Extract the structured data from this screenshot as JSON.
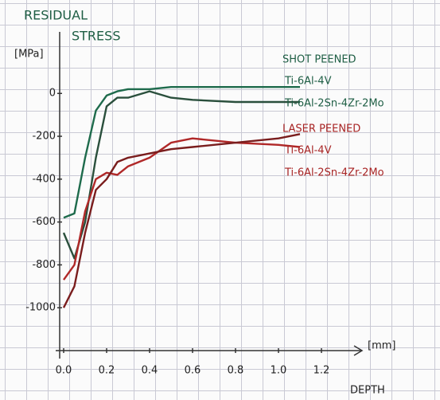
{
  "chart_data": {
    "type": "line",
    "title": [
      "RESIDUAL",
      "STRESS"
    ],
    "y_label": "[MPa]",
    "x_label": [
      "[mm]",
      "DEPTH"
    ],
    "x": [
      0,
      0.05,
      0.1,
      0.15,
      0.2,
      0.25,
      0.3,
      0.4,
      0.5,
      0.6,
      0.8,
      1.0,
      1.1
    ],
    "series": [
      {
        "group": "SHOT PEENED",
        "name": "Ti-6Al-4V",
        "color": "#1e6b4c",
        "values": [
          -580,
          -560,
          -300,
          -80,
          -10,
          10,
          20,
          20,
          30,
          30,
          30,
          30,
          30
        ]
      },
      {
        "group": "SHOT PEENED",
        "name": "Ti-6Al-2Sn-4Zr-2Mo",
        "color": "#2a4f3c",
        "values": [
          -650,
          -770,
          -600,
          -300,
          -60,
          -20,
          -20,
          10,
          -20,
          -30,
          -40,
          -40,
          -40
        ]
      },
      {
        "group": "LASER PEENED",
        "name": "Ti-6Al-4V",
        "color": "#b02828",
        "values": [
          -870,
          -800,
          -550,
          -400,
          -370,
          -380,
          -340,
          -300,
          -230,
          -210,
          -230,
          -240,
          -250
        ]
      },
      {
        "group": "LASER PEENED",
        "name": "Ti-6Al-2Sn-4Zr-2Mo",
        "color": "#7a1d1d",
        "values": [
          -1000,
          -900,
          -650,
          -450,
          -400,
          -320,
          -300,
          -280,
          -260,
          -250,
          -230,
          -210,
          -190
        ]
      }
    ],
    "xlim": [
      0,
      1.4
    ],
    "ylim": [
      -1200,
      250
    ],
    "xticks": [
      {
        "value": 0,
        "label": "0.0"
      },
      0.2,
      0.4,
      0.6,
      0.8,
      {
        "value": 1,
        "label": "1.0"
      },
      1.2
    ],
    "yticks": [
      0,
      -200,
      -400,
      -600,
      -800,
      -1000
    ],
    "grid": false
  }
}
